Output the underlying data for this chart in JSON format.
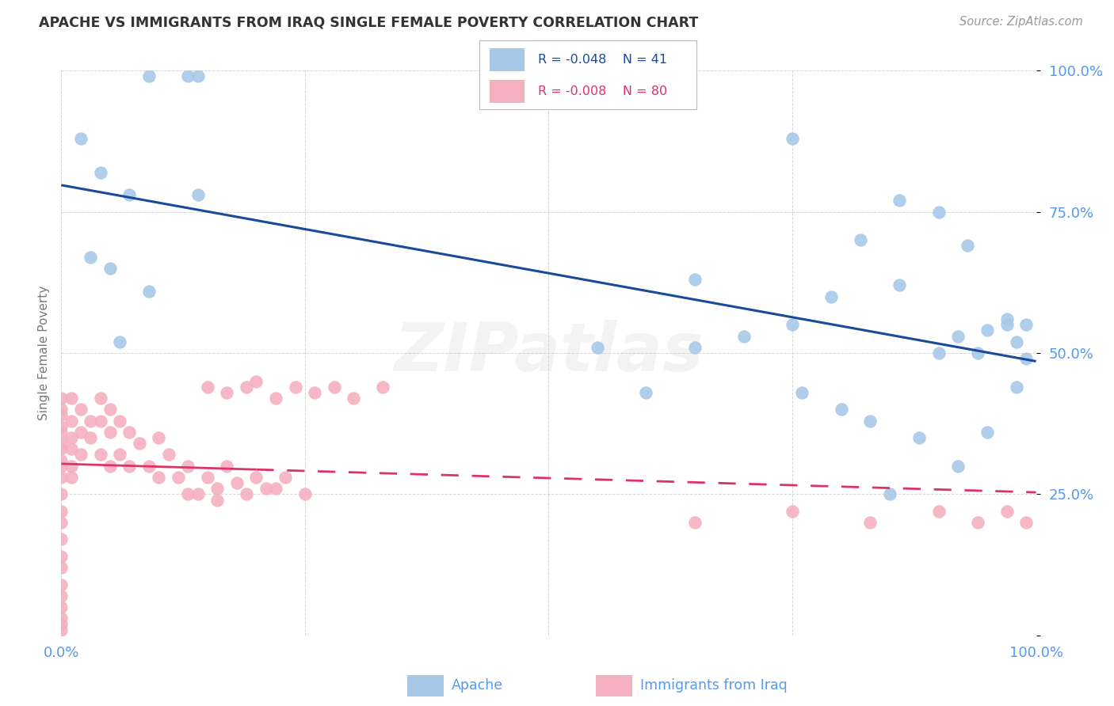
{
  "title": "APACHE VS IMMIGRANTS FROM IRAQ SINGLE FEMALE POVERTY CORRELATION CHART",
  "source": "Source: ZipAtlas.com",
  "ylabel": "Single Female Poverty",
  "watermark": "ZIPatlas",
  "legend_blue_r": "-0.048",
  "legend_blue_n": "41",
  "legend_pink_r": "-0.008",
  "legend_pink_n": "80",
  "blue_x": [
    0.02,
    0.09,
    0.13,
    0.14,
    0.04,
    0.07,
    0.03,
    0.05,
    0.09,
    0.14,
    0.06,
    0.75,
    0.82,
    0.86,
    0.9,
    0.93,
    0.97,
    0.99,
    0.79,
    0.86,
    0.9,
    0.94,
    0.97,
    0.99,
    0.6,
    0.76,
    0.83,
    0.88,
    0.92,
    0.95,
    0.98,
    0.65,
    0.7,
    0.8,
    0.85,
    0.55,
    0.92,
    0.95,
    0.98,
    0.65,
    0.75
  ],
  "blue_y": [
    0.88,
    0.99,
    0.99,
    0.99,
    0.82,
    0.78,
    0.67,
    0.65,
    0.61,
    0.78,
    0.52,
    0.88,
    0.7,
    0.77,
    0.75,
    0.69,
    0.56,
    0.55,
    0.6,
    0.62,
    0.5,
    0.5,
    0.55,
    0.49,
    0.43,
    0.43,
    0.38,
    0.35,
    0.3,
    0.36,
    0.44,
    0.63,
    0.53,
    0.4,
    0.25,
    0.51,
    0.53,
    0.54,
    0.52,
    0.51,
    0.55
  ],
  "pink_x": [
    0.0,
    0.0,
    0.0,
    0.0,
    0.0,
    0.0,
    0.0,
    0.0,
    0.0,
    0.0,
    0.0,
    0.0,
    0.0,
    0.0,
    0.0,
    0.0,
    0.0,
    0.0,
    0.0,
    0.0,
    0.0,
    0.0,
    0.01,
    0.01,
    0.01,
    0.01,
    0.01,
    0.01,
    0.02,
    0.02,
    0.02,
    0.03,
    0.03,
    0.04,
    0.04,
    0.04,
    0.05,
    0.05,
    0.05,
    0.06,
    0.06,
    0.07,
    0.07,
    0.08,
    0.09,
    0.1,
    0.1,
    0.11,
    0.12,
    0.13,
    0.14,
    0.15,
    0.16,
    0.17,
    0.18,
    0.19,
    0.2,
    0.21,
    0.23,
    0.15,
    0.17,
    0.19,
    0.2,
    0.22,
    0.24,
    0.26,
    0.28,
    0.3,
    0.33,
    0.65,
    0.75,
    0.83,
    0.9,
    0.94,
    0.97,
    0.99,
    0.13,
    0.16,
    0.22,
    0.25
  ],
  "pink_y": [
    0.4,
    0.37,
    0.34,
    0.3,
    0.28,
    0.25,
    0.22,
    0.2,
    0.17,
    0.14,
    0.12,
    0.09,
    0.07,
    0.05,
    0.03,
    0.02,
    0.01,
    0.42,
    0.39,
    0.36,
    0.33,
    0.31,
    0.42,
    0.38,
    0.35,
    0.33,
    0.3,
    0.28,
    0.4,
    0.36,
    0.32,
    0.38,
    0.35,
    0.42,
    0.38,
    0.32,
    0.4,
    0.36,
    0.3,
    0.38,
    0.32,
    0.36,
    0.3,
    0.34,
    0.3,
    0.35,
    0.28,
    0.32,
    0.28,
    0.3,
    0.25,
    0.28,
    0.26,
    0.3,
    0.27,
    0.25,
    0.28,
    0.26,
    0.28,
    0.44,
    0.43,
    0.44,
    0.45,
    0.42,
    0.44,
    0.43,
    0.44,
    0.42,
    0.44,
    0.2,
    0.22,
    0.2,
    0.22,
    0.2,
    0.22,
    0.2,
    0.25,
    0.24,
    0.26,
    0.25
  ],
  "blue_color": "#a8c8e8",
  "pink_color": "#f5b0c0",
  "blue_line_color": "#1a4a9a",
  "pink_line_color": "#dd3366",
  "grid_color": "#cccccc",
  "bg_color": "#ffffff",
  "title_color": "#333333",
  "tick_color": "#5599ee",
  "source_color": "#999999",
  "ylabel_color": "#777777",
  "watermark_color": "#cccccc"
}
